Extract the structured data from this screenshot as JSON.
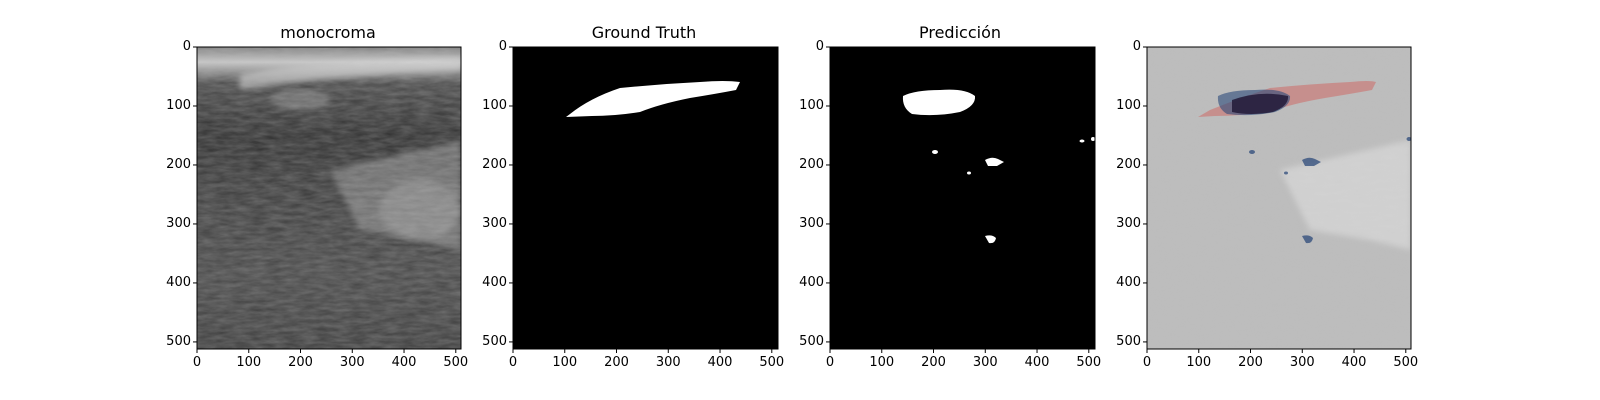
{
  "figure": {
    "panels": [
      {
        "title": "monocroma",
        "kind": "ultrasound"
      },
      {
        "title": "Ground Truth",
        "kind": "mask_gt"
      },
      {
        "title": "Predicción",
        "kind": "mask_pred"
      },
      {
        "title": "",
        "kind": "overlay"
      }
    ],
    "x_ticks": [
      "0",
      "100",
      "200",
      "300",
      "400",
      "500"
    ],
    "y_ticks": [
      "0",
      "100",
      "200",
      "300",
      "400",
      "500"
    ],
    "axis_range": {
      "x": [
        0,
        512
      ],
      "y": [
        0,
        512
      ]
    },
    "colors": {
      "background": "#ffffff",
      "mask_fill": "#ffffff",
      "mask_background": "#000000",
      "overlay_gt": "#c9807e",
      "overlay_pred": "#2c4a7a",
      "overlay_overlap": "#1e1533"
    }
  }
}
